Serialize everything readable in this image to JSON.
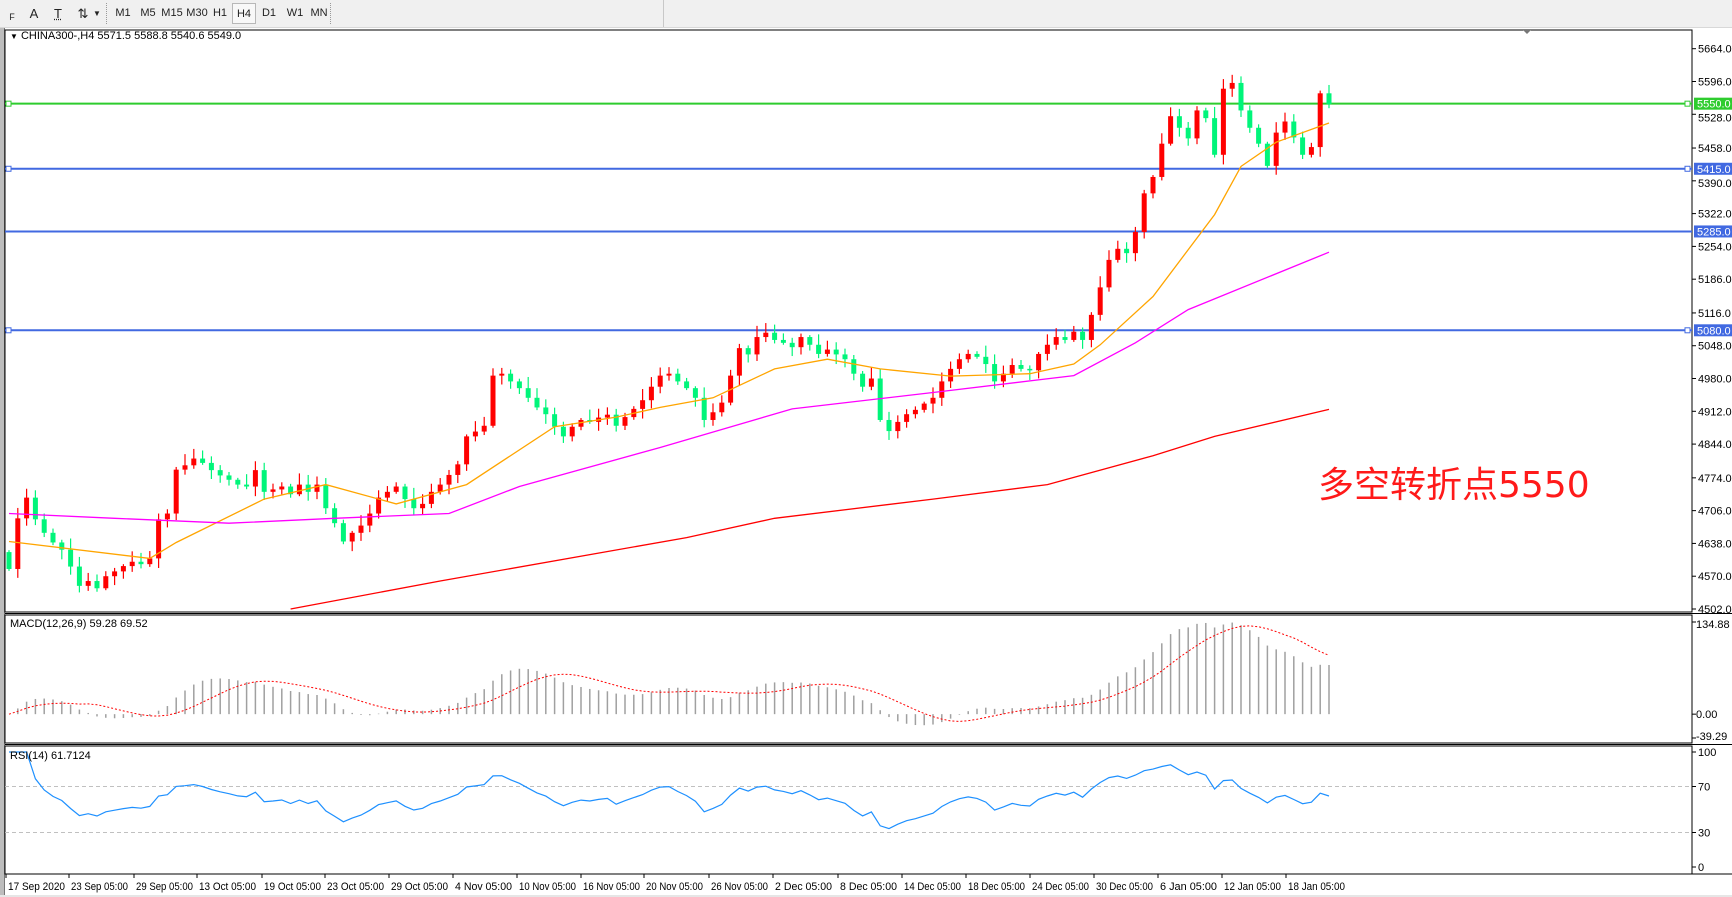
{
  "toolbar": {
    "tools": [
      {
        "name": "fibo-icon",
        "glyph": "F"
      },
      {
        "name": "text-icon",
        "glyph": "A"
      },
      {
        "name": "text-label-icon",
        "glyph": "T"
      },
      {
        "name": "arrows-icon",
        "glyph": "⇅"
      }
    ],
    "timeframes": [
      "M1",
      "M5",
      "M15",
      "M30",
      "H1",
      "H4",
      "D1",
      "W1",
      "MN"
    ],
    "selected_timeframe": "H4"
  },
  "chart": {
    "title": "CHINA300-,H4  5571.5 5588.8 5540.6 5549.0",
    "symbol": "CHINA300-",
    "ohlc_last": {
      "open": 5571.5,
      "high": 5588.8,
      "low": 5540.6,
      "close": 5549.0
    },
    "annotation": "多空转折点5550",
    "annotation_color": "#ff1a1a"
  },
  "chart_data": {
    "type": "candlestick",
    "timeframe": "H4",
    "price_axis": {
      "range": [
        4502.0,
        5664.0
      ],
      "ticks": [
        "5664.0",
        "5596.0",
        "5528.0",
        "5458.0",
        "5390.0",
        "5322.0",
        "5254.0",
        "5186.0",
        "5116.0",
        "5048.0",
        "4980.0",
        "4912.0",
        "4844.0",
        "4774.0",
        "4706.0",
        "4638.0",
        "4570.0",
        "4502.0"
      ]
    },
    "time_axis": {
      "ticks": [
        "17 Sep 2020",
        "23 Sep 05:00",
        "29 Sep 05:00",
        "13 Oct 05:00",
        "19 Oct 05:00",
        "23 Oct 05:00",
        "29 Oct 05:00",
        "4 Nov 05:00",
        "10 Nov 05:00",
        "16 Nov 05:00",
        "20 Nov 05:00",
        "26 Nov 05:00",
        "2 Dec 05:00",
        "8 Dec 05:00",
        "14 Dec 05:00",
        "18 Dec 05:00",
        "24 Dec 05:00",
        "30 Dec 05:00",
        "6 Jan 05:00",
        "12 Jan 05:00",
        "18 Jan 05:00"
      ]
    },
    "colors": {
      "bull": "#ff0000",
      "bear": "#00f57a"
    },
    "first_open": 4620,
    "closes": [
      4585,
      4690,
      4733,
      4688,
      4660,
      4640,
      4625,
      4590,
      4550,
      4560,
      4545,
      4570,
      4580,
      4591,
      4600,
      4595,
      4607,
      4688,
      4700,
      4791,
      4800,
      4814,
      4805,
      4790,
      4779,
      4770,
      4760,
      4756,
      4790,
      4745,
      4750,
      4756,
      4740,
      4760,
      4745,
      4760,
      4711,
      4680,
      4642,
      4660,
      4675,
      4700,
      4733,
      4745,
      4756,
      4730,
      4711,
      4720,
      4745,
      4760,
      4780,
      4802,
      4860,
      4870,
      4882,
      4986,
      4990,
      4974,
      4960,
      4940,
      4920,
      4906,
      4880,
      4860,
      4880,
      4894,
      4890,
      4899,
      4905,
      4882,
      4900,
      4917,
      4935,
      4963,
      4986,
      4990,
      4974,
      4960,
      4940,
      4894,
      4910,
      4930,
      4986,
      5043,
      5030,
      5066,
      5075,
      5060,
      5054,
      5045,
      5066,
      5050,
      5031,
      5040,
      5030,
      5020,
      4990,
      4963,
      4980,
      4894,
      4871,
      4890,
      4906,
      4915,
      4928,
      4940,
      4974,
      5000,
      5020,
      5031,
      5025,
      5010,
      4974,
      4990,
      5008,
      5000,
      4997,
      5031,
      5050,
      5066,
      5060,
      5077,
      5060,
      5112,
      5169,
      5226,
      5249,
      5240,
      5284,
      5364,
      5398,
      5467,
      5524,
      5500,
      5478,
      5536,
      5520,
      5444,
      5581,
      5593,
      5536,
      5500,
      5467,
      5421,
      5490,
      5513,
      5480,
      5444,
      5460,
      5571.5,
      5549.0
    ],
    "last_high": 5588.8,
    "last_low": 5540.6,
    "moving_averages": [
      {
        "color": "#ffa500",
        "points": [
          [
            0,
            4642
          ],
          [
            16,
            4607
          ],
          [
            19,
            4640
          ],
          [
            29,
            4730
          ],
          [
            36,
            4760
          ],
          [
            44,
            4720
          ],
          [
            52,
            4760
          ],
          [
            62,
            4880
          ],
          [
            69,
            4900
          ],
          [
            74,
            4920
          ],
          [
            80,
            4940
          ],
          [
            87,
            5000
          ],
          [
            93,
            5020
          ],
          [
            99,
            5000
          ],
          [
            107,
            4985
          ],
          [
            116,
            4990
          ],
          [
            121,
            5010
          ],
          [
            124,
            5050
          ],
          [
            130,
            5150
          ],
          [
            137,
            5320
          ],
          [
            140,
            5420
          ],
          [
            144,
            5470
          ],
          [
            150,
            5510
          ]
        ]
      },
      {
        "color": "#ff00ff",
        "points": [
          [
            0,
            4700
          ],
          [
            12,
            4690
          ],
          [
            25,
            4680
          ],
          [
            37,
            4690
          ],
          [
            50,
            4700
          ],
          [
            58,
            4756
          ],
          [
            74,
            4837
          ],
          [
            89,
            4917
          ],
          [
            105,
            4951
          ],
          [
            121,
            4986
          ],
          [
            128,
            5054
          ],
          [
            134,
            5123
          ],
          [
            150,
            5242
          ]
        ]
      },
      {
        "color": "#ff0000",
        "points": [
          [
            32,
            4502
          ],
          [
            49,
            4560
          ],
          [
            77,
            4650
          ],
          [
            87,
            4690
          ],
          [
            105,
            4730
          ],
          [
            118,
            4760
          ],
          [
            130,
            4820
          ],
          [
            137,
            4860
          ],
          [
            150,
            4916
          ]
        ]
      }
    ],
    "horizontal_lines": [
      {
        "price": 5550.0,
        "label": "5550.0",
        "color": "#2ecc2e"
      },
      {
        "price": 5415.0,
        "label": "5415.0",
        "color": "#4169e1"
      },
      {
        "price": 5285.0,
        "label": "5285.0",
        "color": "#4169e1"
      },
      {
        "price": 5080.0,
        "label": "5080.0",
        "color": "#4169e1"
      }
    ],
    "macd": {
      "label": "MACD(12,26,9) 59.28 69.52",
      "range": [
        -39.29,
        134.88
      ],
      "ticks": [
        "134.88",
        "0.00",
        "-39.29"
      ],
      "hist_color": "#a0a0a0",
      "signal_color": "#ff0000"
    },
    "rsi": {
      "label": "RSI(14) 61.7124",
      "period": 14,
      "range": [
        0,
        100
      ],
      "levels": [
        30,
        70
      ],
      "ticks": [
        "100",
        "70",
        "30",
        "0"
      ],
      "color": "#1e90ff"
    }
  }
}
